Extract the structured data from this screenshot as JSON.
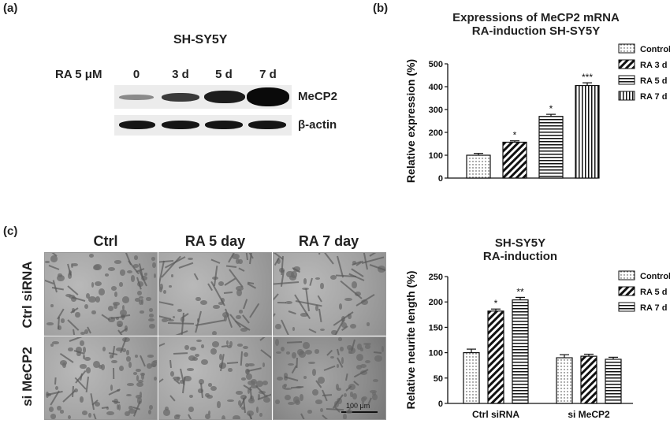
{
  "panel_labels": {
    "a": "(a)",
    "b": "(b)",
    "c": "(c)"
  },
  "western_blot": {
    "title": "SH-SY5Y",
    "treatment_label": "RA 5 μM",
    "lanes": [
      "0",
      "3 d",
      "5 d",
      "7 d"
    ],
    "rows": [
      "MeCP2",
      "β-actin"
    ]
  },
  "micrographs": {
    "columns": [
      "Ctrl",
      "RA 5 day",
      "RA 7 day"
    ],
    "rows": [
      "Ctrl siRNA",
      "si MeCP2"
    ],
    "scale_bar": "100 μm"
  },
  "chart_data": [
    {
      "type": "bar",
      "title": "Expressions of MeCP2 mRNA RA-induction SH-SY5Y",
      "title_lines": [
        "Expressions of MeCP2 mRNA",
        "RA-induction SH-SY5Y"
      ],
      "ylabel": "Relative expression (%)",
      "ylim": [
        0,
        500
      ],
      "yticks": [
        "0",
        "100",
        "200",
        "300",
        "400",
        "500"
      ],
      "legend": [
        "Control",
        "RA 3 d",
        "RA 5 d",
        "RA 7 d"
      ],
      "values": [
        100,
        157,
        270,
        405
      ],
      "errors": [
        8,
        6,
        9,
        12
      ],
      "significance": [
        "",
        "*",
        "*",
        "***"
      ]
    },
    {
      "type": "bar",
      "title": "SH-SY5Y RA-induction",
      "title_lines": [
        "SH-SY5Y",
        "RA-induction"
      ],
      "ylabel": "Relative neurite length (%)",
      "ylim": [
        0,
        250
      ],
      "yticks": [
        "0",
        "50",
        "100",
        "150",
        "200",
        "250"
      ],
      "categories": [
        "Ctrl siRNA",
        "si MeCP2"
      ],
      "legend": [
        "Control",
        "RA 5 d",
        "RA 7 d"
      ],
      "series": [
        {
          "name": "Control",
          "values": [
            100,
            90
          ],
          "errors": [
            7,
            6
          ]
        },
        {
          "name": "RA 5 d",
          "values": [
            182,
            93
          ],
          "errors": [
            4,
            4
          ]
        },
        {
          "name": "RA 7 d",
          "values": [
            204,
            87
          ],
          "errors": [
            5,
            4
          ]
        }
      ],
      "significance": [
        [
          "",
          "*",
          "**"
        ],
        [
          "",
          "",
          ""
        ]
      ]
    }
  ]
}
